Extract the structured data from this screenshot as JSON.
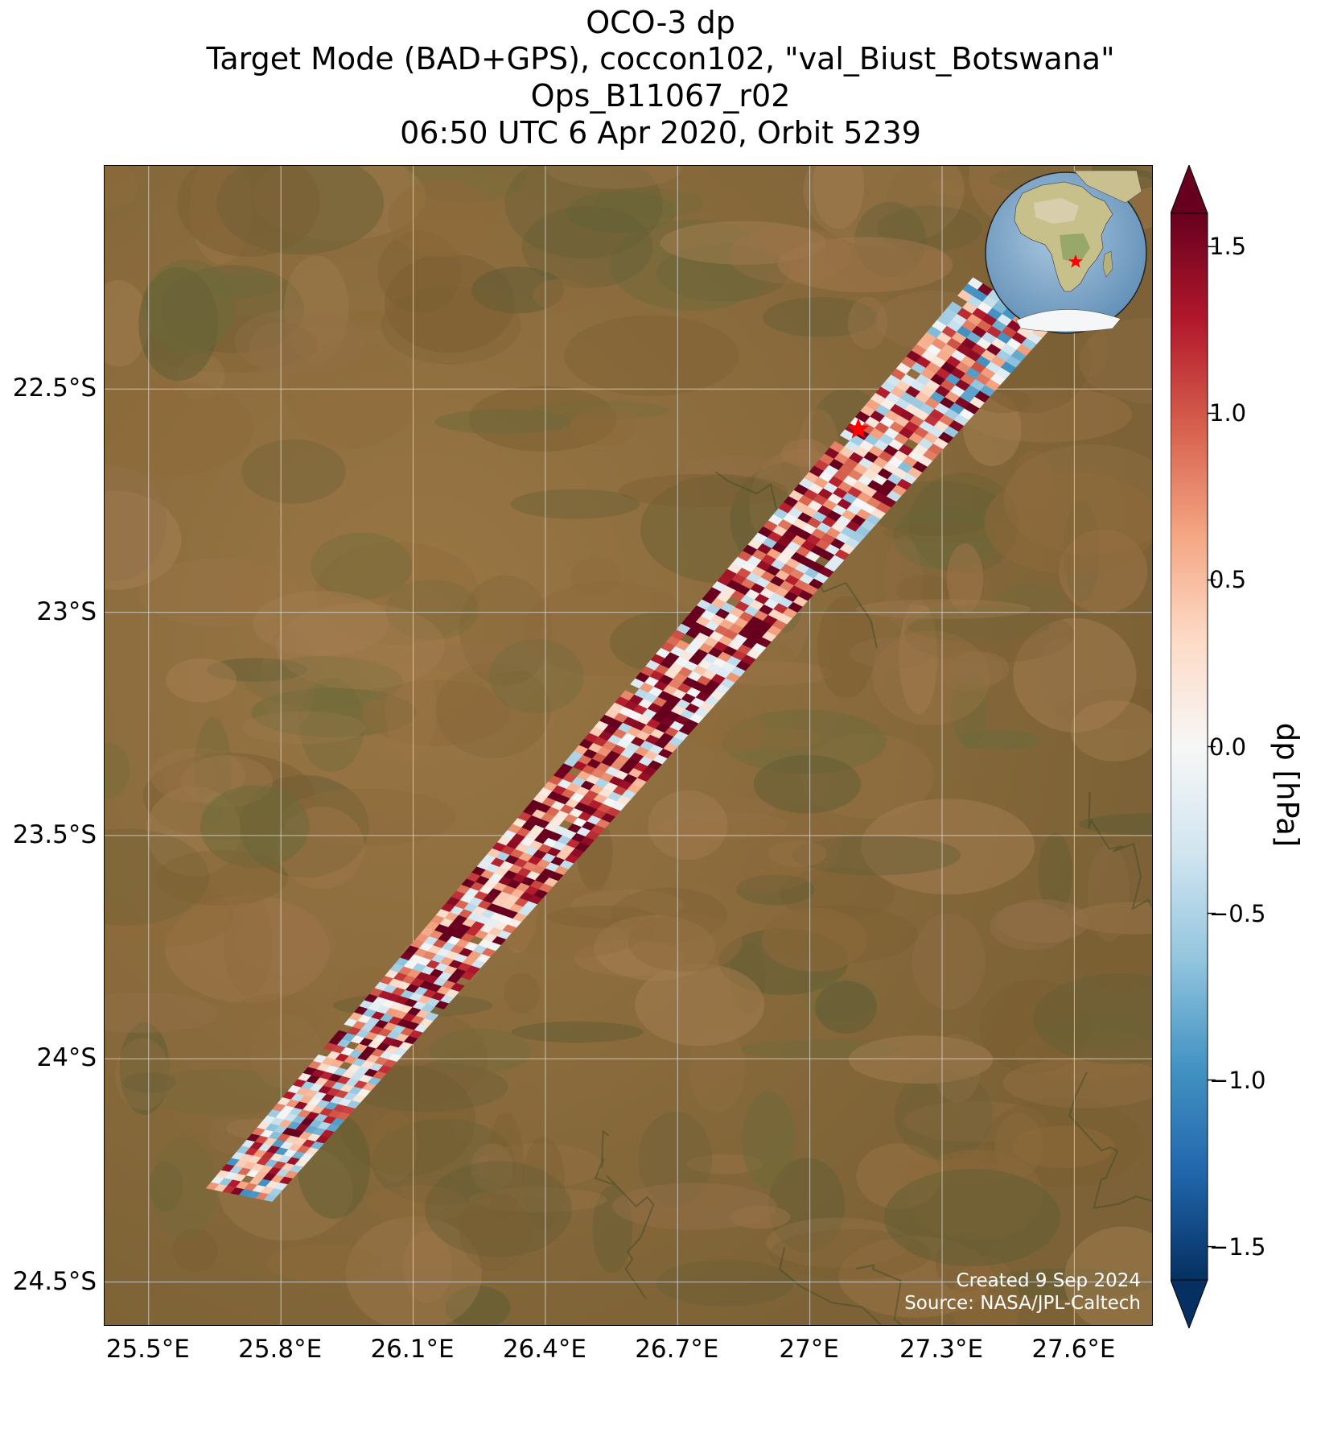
{
  "title_lines": [
    "OCO-3 dp",
    "Target Mode (BAD+GPS), coccon102, \"val_Biust_Botswana\"",
    "Ops_B11067_r02",
    "06:50 UTC 6 Apr 2020, Orbit 5239"
  ],
  "map": {
    "type": "satellite-basemap-swath",
    "lon_range": [
      25.4,
      27.78
    ],
    "lat_range": [
      -24.6,
      -22.0
    ],
    "lon_ticks": [
      {
        "value": 25.5,
        "label": "25.5°E"
      },
      {
        "value": 25.8,
        "label": "25.8°E"
      },
      {
        "value": 26.1,
        "label": "26.1°E"
      },
      {
        "value": 26.4,
        "label": "26.4°E"
      },
      {
        "value": 26.7,
        "label": "26.7°E"
      },
      {
        "value": 27.0,
        "label": "27°E"
      },
      {
        "value": 27.3,
        "label": "27.3°E"
      },
      {
        "value": 27.6,
        "label": "27.6°E"
      }
    ],
    "lat_ticks": [
      {
        "value": -22.5,
        "label": "22.5°S"
      },
      {
        "value": -23.0,
        "label": "23°S"
      },
      {
        "value": -23.5,
        "label": "23.5°S"
      },
      {
        "value": -24.0,
        "label": "24°S"
      },
      {
        "value": -24.5,
        "label": "24.5°S"
      }
    ],
    "grid": true,
    "target_marker": {
      "lon": 27.11,
      "lat": -22.59,
      "symbol": "star",
      "color": "#ff0000"
    },
    "swath_corners_lonlat": [
      [
        25.63,
        -24.29
      ],
      [
        25.78,
        -24.32
      ],
      [
        27.55,
        -22.36
      ],
      [
        27.37,
        -22.25
      ]
    ],
    "globe_inset": {
      "marker": "star",
      "marker_color": "#ff0000",
      "region": "Africa"
    }
  },
  "chart_data": {
    "type": "heatmap",
    "variable": "dp",
    "colorbar_label": "dp [hPa]",
    "clim": [
      -1.6,
      1.6
    ],
    "colorbar_extend": "both",
    "colormap": "RdBu_r",
    "colorbar_ticks": [
      {
        "value": 1.5,
        "label": "1.5"
      },
      {
        "value": 1.0,
        "label": "1.0"
      },
      {
        "value": 0.5,
        "label": "0.5"
      },
      {
        "value": 0.0,
        "label": "0.0"
      },
      {
        "value": -0.5,
        "label": "−0.5"
      },
      {
        "value": -1.0,
        "label": "−1.0"
      },
      {
        "value": -1.5,
        "label": "−1.5"
      }
    ]
  },
  "credits": [
    "Created 9 Sep 2024",
    "Source: NASA/JPL-Caltech"
  ],
  "colors": {
    "land_base": "#8a6a3c",
    "land_dark": "#5e5a30",
    "grid": "#d8d8d8",
    "marker": "#ff0000"
  }
}
